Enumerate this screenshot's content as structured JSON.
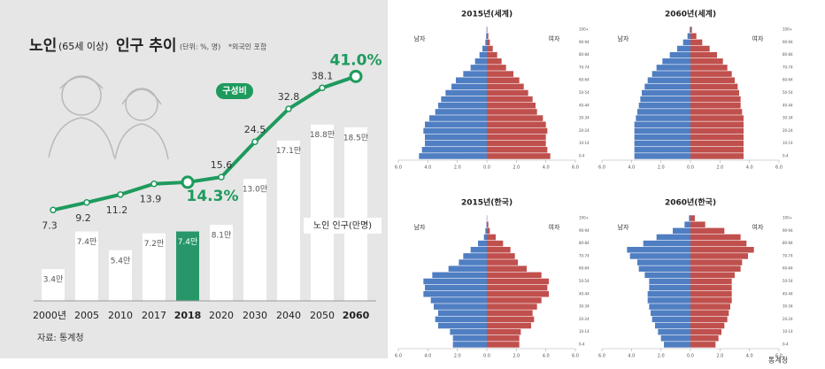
{
  "chart_data": [
    {
      "type": "combo",
      "title": "노인",
      "title_note": "(65세 이상)",
      "title_rest": "인구 추이",
      "unit": "(단위: %, 명)",
      "note": "*외국인 포함",
      "source": "자료: 통계청",
      "categories": [
        "2000년",
        "2005",
        "2010",
        "2017",
        "2018",
        "2020",
        "2030",
        "2040",
        "2050",
        "2060"
      ],
      "series": [
        {
          "name": "노인 인구(만명)",
          "type": "bar",
          "colors": [
            "#ffffff",
            "#ffffff",
            "#ffffff",
            "#ffffff",
            "#27976a",
            "#ffffff",
            "#ffffff",
            "#ffffff",
            "#ffffff",
            "#ffffff"
          ],
          "values": [
            3.4,
            7.4,
            5.4,
            7.2,
            7.4,
            8.1,
            13.0,
            17.1,
            18.8,
            18.5
          ],
          "value_labels": [
            "3.4만",
            "7.4만",
            "5.4만",
            "7.2만",
            "7.4만",
            "8.1만",
            "13.0만",
            "17.1만",
            "18.8만",
            "18.5만"
          ]
        },
        {
          "name": "구성비",
          "type": "line",
          "color": "#1e9a5d",
          "values": [
            7.3,
            9.2,
            11.2,
            13.9,
            14.3,
            15.6,
            24.5,
            32.8,
            38.1,
            41.0
          ],
          "value_labels": [
            "7.3",
            "9.2",
            "11.2",
            "13.9",
            "14.3%",
            "15.6",
            "24.5",
            "32.8",
            "38.1",
            "41.0%"
          ]
        }
      ]
    },
    {
      "type": "pyramid",
      "title": "2015년(세계)",
      "categories": [
        "0-4",
        null,
        "10-14",
        null,
        "20-24",
        null,
        "30-34",
        null,
        "40-44",
        null,
        "50-54",
        null,
        "60-64",
        null,
        "70-74",
        null,
        "80-84",
        null,
        "90-94",
        null,
        "100+"
      ],
      "series": [
        {
          "name": "남자",
          "side": "left",
          "color": "#4f7ec2",
          "values": [
            4.6,
            4.4,
            4.2,
            4.2,
            4.3,
            4.2,
            3.9,
            3.5,
            3.3,
            3.1,
            2.8,
            2.4,
            2.1,
            1.6,
            1.1,
            0.8,
            0.5,
            0.3,
            0.1,
            0.05,
            0.02
          ]
        },
        {
          "name": "여자",
          "side": "right",
          "color": "#c0504d",
          "values": [
            4.3,
            4.1,
            4.0,
            4.0,
            4.1,
            4.0,
            3.8,
            3.4,
            3.3,
            3.1,
            2.8,
            2.5,
            2.2,
            1.8,
            1.3,
            1.0,
            0.7,
            0.4,
            0.2,
            0.1,
            0.03
          ]
        }
      ],
      "xlim": [
        0,
        6
      ],
      "xticks": [
        {
          "value": 0,
          "label": "0.0"
        },
        {
          "value": 2,
          "label": "2.0"
        },
        {
          "value": 4,
          "label": "4.0"
        },
        {
          "value": 6,
          "label": "6.0"
        }
      ]
    },
    {
      "type": "pyramid",
      "title": "2060년(세계)",
      "categories": [
        "0-4",
        null,
        "10-14",
        null,
        "20-24",
        null,
        "30-34",
        null,
        "40-44",
        null,
        "50-54",
        null,
        "60-64",
        null,
        "70-74",
        null,
        "80-84",
        null,
        "90-94",
        null,
        "100+"
      ],
      "series": [
        {
          "name": "남자",
          "side": "left",
          "color": "#4f7ec2",
          "values": [
            3.8,
            3.8,
            3.8,
            3.8,
            3.8,
            3.8,
            3.7,
            3.6,
            3.5,
            3.4,
            3.3,
            3.1,
            2.9,
            2.6,
            2.3,
            1.9,
            1.4,
            0.9,
            0.5,
            0.2,
            0.05
          ]
        },
        {
          "name": "여자",
          "side": "right",
          "color": "#c0504d",
          "values": [
            3.6,
            3.6,
            3.6,
            3.6,
            3.6,
            3.6,
            3.6,
            3.5,
            3.4,
            3.4,
            3.3,
            3.2,
            3.0,
            2.8,
            2.5,
            2.2,
            1.8,
            1.3,
            0.8,
            0.4,
            0.1
          ]
        }
      ],
      "xlim": [
        0,
        6
      ],
      "xticks": [
        {
          "value": 0,
          "label": "0.0"
        },
        {
          "value": 2,
          "label": "2.0"
        },
        {
          "value": 4,
          "label": "4.0"
        },
        {
          "value": 6,
          "label": "6.0"
        }
      ]
    },
    {
      "type": "pyramid",
      "title": "2015년(한국)",
      "categories": [
        "0-4",
        null,
        "10-14",
        null,
        "20-24",
        null,
        "30-34",
        null,
        "40-44",
        null,
        "50-54",
        null,
        "60-64",
        null,
        "70-74",
        null,
        "80-84",
        null,
        "90-94",
        null,
        "100+"
      ],
      "series": [
        {
          "name": "남자",
          "side": "left",
          "color": "#4f7ec2",
          "values": [
            2.3,
            2.3,
            2.5,
            3.3,
            3.5,
            3.3,
            3.6,
            3.8,
            4.3,
            4.2,
            4.3,
            3.7,
            2.6,
            1.9,
            1.6,
            1.1,
            0.6,
            0.2,
            0.1,
            0.03,
            0.01
          ]
        },
        {
          "name": "여자",
          "side": "right",
          "color": "#c0504d",
          "values": [
            2.2,
            2.2,
            2.3,
            3.0,
            3.2,
            3.1,
            3.4,
            3.7,
            4.2,
            4.1,
            4.2,
            3.7,
            2.7,
            2.1,
            1.9,
            1.6,
            1.1,
            0.6,
            0.2,
            0.1,
            0.02
          ]
        }
      ],
      "xlim": [
        0,
        6
      ],
      "xticks": [
        {
          "value": 0,
          "label": "0.0"
        },
        {
          "value": 2,
          "label": "2.0"
        },
        {
          "value": 4,
          "label": "4.0"
        },
        {
          "value": 6,
          "label": "6.0"
        }
      ]
    },
    {
      "type": "pyramid",
      "title": "2060년(한국)",
      "source": "통계청",
      "categories": [
        "0-4",
        null,
        "10-14",
        null,
        "20-24",
        null,
        "30-34",
        null,
        "40-44",
        null,
        "50-54",
        null,
        "60-64",
        null,
        "70-74",
        null,
        "80-84",
        null,
        "90-94",
        null,
        "100+"
      ],
      "series": [
        {
          "name": "남자",
          "side": "left",
          "color": "#4f7ec2",
          "values": [
            1.8,
            2.0,
            2.2,
            2.4,
            2.6,
            2.7,
            2.8,
            2.9,
            2.9,
            2.8,
            2.8,
            3.1,
            3.5,
            3.6,
            4.1,
            4.3,
            3.2,
            2.3,
            1.2,
            0.4,
            0.1
          ]
        },
        {
          "name": "여자",
          "side": "right",
          "color": "#c0504d",
          "values": [
            1.7,
            1.9,
            2.1,
            2.3,
            2.5,
            2.6,
            2.7,
            2.8,
            2.8,
            2.8,
            2.8,
            3.0,
            3.4,
            3.5,
            3.9,
            4.3,
            3.8,
            3.4,
            2.3,
            1.0,
            0.3
          ]
        }
      ],
      "xlim": [
        0,
        6
      ],
      "xticks": [
        {
          "value": 0,
          "label": "0.0"
        },
        {
          "value": 2,
          "label": "2.0"
        },
        {
          "value": 4,
          "label": "4.0"
        },
        {
          "value": 6,
          "label": "6.0"
        }
      ]
    }
  ]
}
